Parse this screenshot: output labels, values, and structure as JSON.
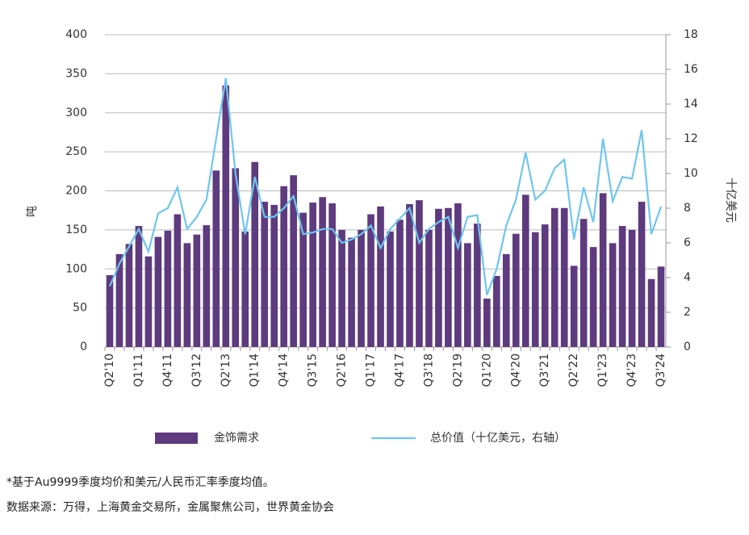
{
  "chart_data": {
    "type": "bar",
    "categories": [
      "Q2'10",
      null,
      null,
      "Q1'11",
      null,
      null,
      "Q4'11",
      null,
      null,
      "Q3'12",
      null,
      null,
      "Q2'13",
      null,
      null,
      "Q1'14",
      null,
      null,
      "Q4'14",
      null,
      null,
      "Q3'15",
      null,
      null,
      "Q2'16",
      null,
      null,
      "Q1'17",
      null,
      null,
      "Q4'17",
      null,
      null,
      "Q3'18",
      null,
      null,
      "Q2'19",
      null,
      null,
      "Q1'20",
      null,
      null,
      "Q4'20",
      null,
      null,
      "Q3'21",
      null,
      null,
      "Q2'22",
      null,
      null,
      "Q1'23",
      null,
      null,
      "Q4'23",
      null,
      null,
      "Q3'24"
    ],
    "series": [
      {
        "name": "金饰需求",
        "type": "bar",
        "color": "#5e3a7e",
        "values": [
          92,
          119,
          132,
          155,
          116,
          141,
          149,
          170,
          133,
          144,
          156,
          226,
          335,
          229,
          148,
          237,
          186,
          182,
          206,
          220,
          172,
          185,
          192,
          184,
          150,
          140,
          150,
          170,
          180,
          148,
          163,
          183,
          188,
          150,
          177,
          178,
          184,
          133,
          158,
          62,
          91,
          119,
          145,
          195,
          147,
          157,
          178,
          178,
          104,
          164,
          128,
          197,
          133,
          155,
          150,
          186,
          87,
          103
        ]
      },
      {
        "name": "总价值（十亿美元，右轴）",
        "type": "line",
        "axis": "y2",
        "color": "#6ec6ef",
        "values": [
          3.5,
          4.8,
          5.8,
          6.8,
          5.5,
          7.7,
          8.0,
          9.2,
          6.8,
          7.5,
          8.5,
          12.0,
          15.5,
          10.0,
          6.5,
          9.8,
          7.5,
          7.5,
          8.0,
          8.7,
          6.5,
          6.6,
          6.8,
          6.8,
          6.0,
          6.2,
          6.5,
          7.0,
          5.7,
          6.8,
          7.4,
          8.0,
          6.0,
          6.8,
          7.2,
          7.5,
          5.7,
          7.5,
          7.6,
          3.0,
          4.5,
          7.0,
          8.5,
          11.2,
          8.5,
          9.0,
          10.3,
          10.8,
          6.2,
          9.2,
          7.2,
          12.0,
          8.4,
          9.8,
          9.7,
          12.5,
          6.5,
          8.1
        ]
      }
    ],
    "ylabel": "吨",
    "y2label": "十亿美元",
    "ylim": [
      0,
      400
    ],
    "yticks": [
      0,
      50,
      100,
      150,
      200,
      250,
      300,
      350,
      400
    ],
    "y2lim": [
      0,
      18
    ],
    "y2ticks": [
      0,
      2,
      4,
      6,
      8,
      10,
      12,
      14,
      16,
      18
    ],
    "grid": true,
    "legend": "bottom",
    "notes": [
      "*基于Au9999季度均价和美元/人民币汇率季度均值。",
      "数据来源：万得，上海黄金交易所，金属聚焦公司，世界黄金协会"
    ]
  }
}
